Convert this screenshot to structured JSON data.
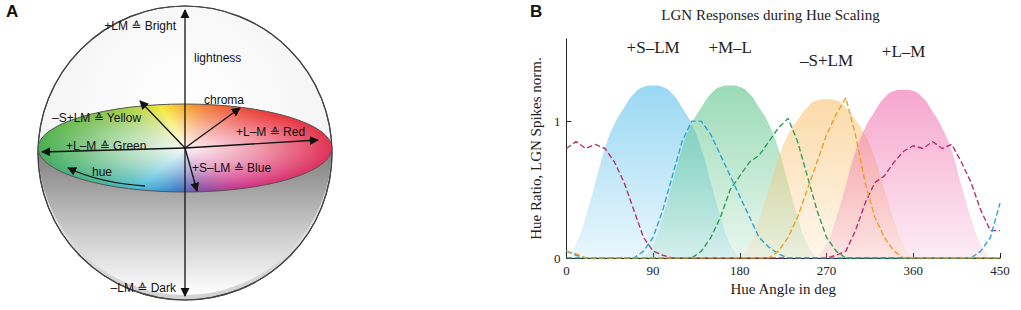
{
  "diagram": {
    "panel_label": "A",
    "labels": {
      "bright": "+LM ≙ Bright",
      "lightness": "lightness",
      "chroma": "chroma",
      "yellow": "–S+LM ≙ Yellow",
      "red": "+L–M ≙ Red",
      "green": "+L–M ≙ Green",
      "blue": "+S–LM ≙ Blue",
      "hue": "hue",
      "dark": "–LM ≙ Dark"
    }
  },
  "chart_data": {
    "panel_label": "B",
    "type": "line",
    "title": "LGN Responses during Hue Scaling",
    "x_label": "Hue Angle in deg",
    "y_label": "Hue Ratio, LGN Spikes norm.",
    "x": [
      0,
      10,
      20,
      30,
      40,
      50,
      60,
      70,
      80,
      90,
      100,
      110,
      120,
      130,
      140,
      150,
      160,
      170,
      180,
      190,
      200,
      210,
      220,
      230,
      240,
      250,
      260,
      270,
      280,
      290,
      300,
      310,
      320,
      330,
      340,
      350,
      360,
      370,
      380,
      390,
      400,
      410,
      420,
      430,
      440,
      450
    ],
    "xlim": [
      0,
      450
    ],
    "xticks": [
      0,
      90,
      180,
      270,
      360,
      450
    ],
    "ylim": [
      0,
      1.6
    ],
    "yticks": [
      0,
      1
    ],
    "grid": false,
    "series": [
      {
        "name": "+S–LM",
        "type": "area",
        "color": "#5bc0eb",
        "values": [
          0,
          0.1,
          0.3,
          0.55,
          0.8,
          0.98,
          1.1,
          1.2,
          1.25,
          1.26,
          1.25,
          1.2,
          1.1,
          0.98,
          0.8,
          0.55,
          0.3,
          0.1,
          0,
          null,
          null,
          null,
          null,
          null,
          null,
          null,
          null,
          null,
          null,
          null,
          null,
          null,
          null,
          null,
          null,
          null,
          null,
          null,
          null,
          null,
          null,
          null,
          null,
          null,
          null,
          null
        ]
      },
      {
        "name": "+M–L",
        "type": "area",
        "color": "#5cc48a",
        "values": [
          null,
          null,
          null,
          null,
          null,
          null,
          null,
          null,
          0,
          0.1,
          0.3,
          0.55,
          0.8,
          0.98,
          1.1,
          1.2,
          1.25,
          1.26,
          1.25,
          1.2,
          1.1,
          0.98,
          0.8,
          0.55,
          0.3,
          0.1,
          0,
          null,
          null,
          null,
          null,
          null,
          null,
          null,
          null,
          null,
          null,
          null,
          null,
          null,
          null,
          null,
          null,
          null,
          null,
          null
        ]
      },
      {
        "name": "–S+LM",
        "type": "area",
        "color": "#f9c374",
        "values": [
          null,
          null,
          null,
          null,
          null,
          null,
          null,
          null,
          null,
          null,
          null,
          null,
          null,
          null,
          null,
          null,
          null,
          null,
          0,
          0.09,
          0.28,
          0.5,
          0.73,
          0.9,
          1.01,
          1.1,
          1.15,
          1.16,
          1.15,
          1.1,
          1.01,
          0.9,
          0.73,
          0.5,
          0.28,
          0.09,
          0,
          null,
          null,
          null,
          null,
          null,
          null,
          null,
          null,
          null
        ]
      },
      {
        "name": "+L–M",
        "type": "area",
        "color": "#f06fae",
        "values": [
          null,
          null,
          null,
          null,
          null,
          null,
          null,
          null,
          null,
          null,
          null,
          null,
          null,
          null,
          null,
          null,
          null,
          null,
          null,
          null,
          null,
          null,
          null,
          null,
          null,
          null,
          0,
          0.1,
          0.29,
          0.53,
          0.78,
          0.95,
          1.07,
          1.17,
          1.22,
          1.23,
          1.22,
          1.17,
          1.07,
          0.95,
          0.78,
          0.53,
          0.29,
          0.1,
          0,
          null
        ]
      },
      {
        "type": "line",
        "line_style": "dashed",
        "color": "#b8306f",
        "values": [
          0.8,
          0.85,
          0.8,
          0.83,
          0.8,
          0.7,
          0.55,
          0.35,
          0.15,
          0.05,
          0.02,
          0,
          0,
          0,
          0,
          0,
          0,
          0,
          0,
          0,
          0,
          0,
          0,
          0,
          0,
          0,
          0,
          0,
          0.02,
          0.05,
          0.2,
          0.4,
          0.55,
          0.6,
          0.7,
          0.78,
          0.82,
          0.8,
          0.85,
          0.8,
          0.83,
          0.7,
          0.55,
          0.35,
          0.2,
          0.2
        ]
      },
      {
        "type": "line",
        "line_style": "dashed",
        "color": "#29a3d8",
        "values": [
          0.05,
          0.02,
          0,
          0,
          0,
          0,
          0,
          0,
          0.05,
          0.15,
          0.35,
          0.6,
          0.85,
          1.0,
          1.0,
          0.9,
          0.75,
          0.6,
          0.45,
          0.3,
          0.15,
          0.08,
          0.03,
          0,
          0,
          0,
          0,
          0,
          0,
          0,
          0,
          0,
          0,
          0,
          0,
          0,
          0,
          0,
          0,
          0,
          0,
          0,
          0,
          0.05,
          0.15,
          0.4
        ]
      },
      {
        "type": "line",
        "line_style": "dashed",
        "color": "#2b9f5a",
        "values": [
          0,
          0,
          0,
          0,
          0,
          0,
          0,
          0,
          0,
          0,
          0,
          0,
          0,
          0,
          0.05,
          0.15,
          0.3,
          0.5,
          0.6,
          0.7,
          0.75,
          0.85,
          0.95,
          1.02,
          0.85,
          0.6,
          0.35,
          0.15,
          0.05,
          0,
          0,
          0,
          0,
          0,
          0,
          0,
          0,
          0,
          0,
          0,
          0,
          0,
          0,
          0,
          0,
          0
        ]
      },
      {
        "type": "line",
        "line_style": "dashed",
        "color": "#f39c1e",
        "values": [
          0.05,
          0.03,
          0,
          0,
          0,
          0,
          0,
          0,
          0,
          0,
          0,
          0,
          0,
          0,
          0,
          0,
          0,
          0,
          0,
          0,
          0,
          0,
          0.05,
          0.15,
          0.3,
          0.5,
          0.7,
          0.9,
          1.05,
          1.17,
          0.9,
          0.55,
          0.3,
          0.15,
          0.05,
          0,
          0,
          0,
          0,
          0,
          0,
          0,
          0,
          0,
          0,
          0
        ]
      }
    ]
  }
}
